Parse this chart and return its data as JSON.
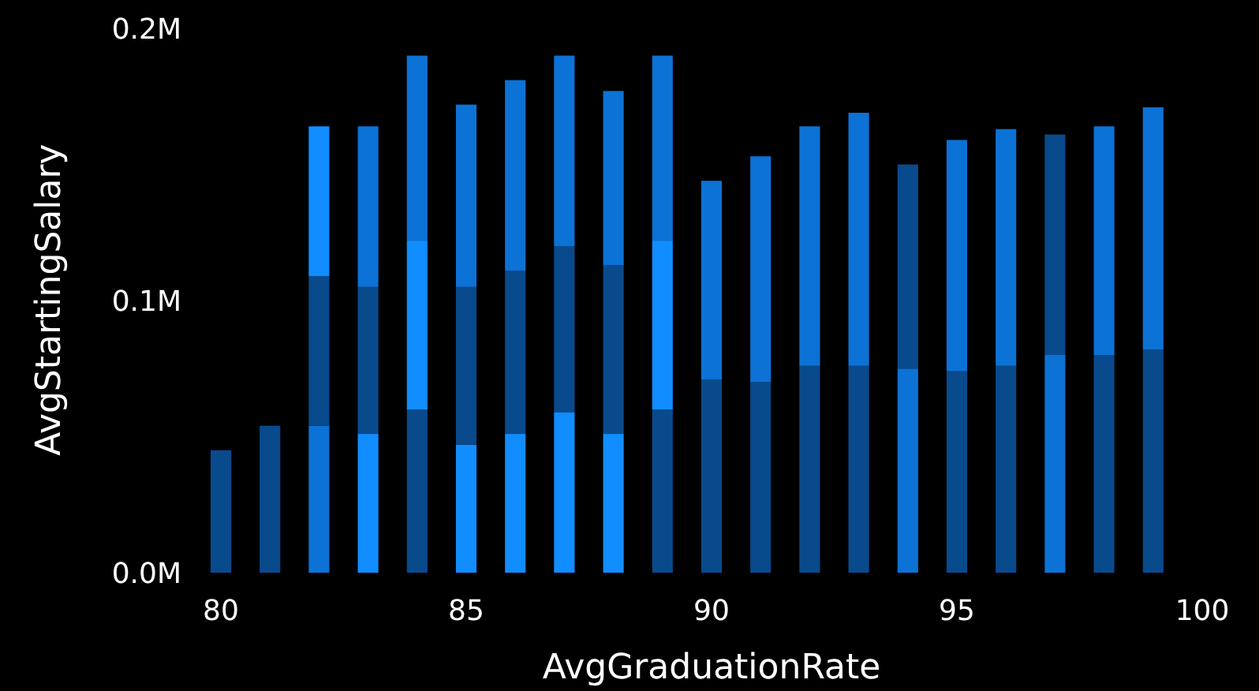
{
  "chart_data": {
    "type": "bar",
    "stacked": true,
    "xlabel": "AvgGraduationRate",
    "ylabel": "AvgStartingSalary",
    "x": [
      80,
      81,
      82,
      83,
      84,
      85,
      86,
      87,
      88,
      89,
      90,
      91,
      92,
      93,
      94,
      95,
      96,
      97,
      98,
      99
    ],
    "xlim": [
      80,
      100
    ],
    "xticks": [
      80,
      85,
      90,
      95,
      100
    ],
    "ylim": [
      0,
      0.2
    ],
    "yticks": [
      {
        "value": 0,
        "label": "0.0M"
      },
      {
        "value": 0.1,
        "label": "0.1M"
      },
      {
        "value": 0.2,
        "label": "0.2M"
      }
    ],
    "series": [
      {
        "values": [
          0.045,
          0.054,
          0.054,
          0.051,
          0.06,
          0.047,
          0.051,
          0.059,
          0.051,
          0.06,
          0.071,
          0.07,
          0.076,
          0.076,
          0.075,
          0.074,
          0.076,
          0.08,
          0.08,
          0.082
        ],
        "colors": [
          "#094a8c",
          "#094a8c",
          "#0c72d6",
          "#118dff",
          "#094a8c",
          "#118dff",
          "#118dff",
          "#118dff",
          "#118dff",
          "#094a8c",
          "#094a8c",
          "#094a8c",
          "#094a8c",
          "#094a8c",
          "#0c72d6",
          "#094a8c",
          "#094a8c",
          "#0c72d6",
          "#094a8c",
          "#094a8c"
        ]
      },
      {
        "values": [
          null,
          null,
          0.055,
          0.054,
          0.062,
          0.058,
          0.06,
          0.061,
          0.062,
          0.062,
          null,
          null,
          null,
          null,
          null,
          null,
          null,
          null,
          null,
          null
        ],
        "colors": [
          null,
          null,
          "#094a8c",
          "#094a8c",
          "#118dff",
          "#094a8c",
          "#094a8c",
          "#094a8c",
          "#094a8c",
          "#118dff",
          null,
          null,
          null,
          null,
          null,
          null,
          null,
          null,
          null,
          null
        ]
      },
      {
        "values": [
          null,
          null,
          0.055,
          0.059,
          0.068,
          0.067,
          0.07,
          0.07,
          0.064,
          0.068,
          0.073,
          0.083,
          0.088,
          0.093,
          0.075,
          0.085,
          0.087,
          0.081,
          0.084,
          0.089
        ],
        "colors": [
          null,
          null,
          "#118dff",
          "#0c72d6",
          "#0c72d6",
          "#0c72d6",
          "#0c72d6",
          "#0c72d6",
          "#0c72d6",
          "#0c72d6",
          "#0c72d6",
          "#0c72d6",
          "#0c72d6",
          "#0c72d6",
          "#094a8c",
          "#0c72d6",
          "#0c72d6",
          "#094a8c",
          "#0c72d6",
          "#0c72d6"
        ]
      }
    ]
  }
}
